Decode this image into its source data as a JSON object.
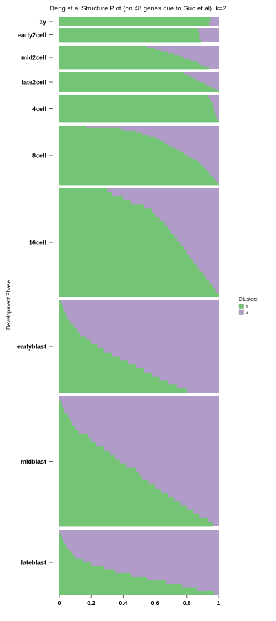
{
  "chart_data": {
    "type": "bar",
    "orientation": "horizontal",
    "stacked": true,
    "title": "Deng et al Structure Plot (on 48 genes due to Guo et al), k=2",
    "ylabel": "Development Phase",
    "xlabel": "",
    "xlim": [
      0,
      1
    ],
    "x_ticks": [
      "0",
      "0.2",
      "0.4",
      "0.6",
      "0.8",
      "1"
    ],
    "grid": false,
    "legend": {
      "title": "Clusters",
      "placement": "right",
      "entries": [
        "1",
        "2"
      ]
    },
    "colors": {
      "cluster_1": "#74c476",
      "cluster_2": "#b19cc9"
    },
    "groups": [
      {
        "name": "zy",
        "cluster_1": [
          0.95,
          0.95,
          0.94,
          0.94
        ]
      },
      {
        "name": "early2cell",
        "cluster_1": [
          0.87,
          0.87,
          0.88,
          0.88,
          0.88,
          0.88,
          0.89,
          0.89
        ]
      },
      {
        "name": "mid2cell",
        "cluster_1": [
          0.55,
          0.6,
          0.64,
          0.68,
          0.72,
          0.76,
          0.78,
          0.82,
          0.86,
          0.88,
          0.91,
          0.94
        ]
      },
      {
        "name": "late2cell",
        "cluster_1": [
          0.78,
          0.8,
          0.82,
          0.84,
          0.86,
          0.88,
          0.9,
          0.92,
          0.94,
          0.96,
          0.98,
          1.0
        ]
      },
      {
        "name": "4cell",
        "cluster_1": [
          0.93,
          0.94,
          0.95,
          0.95,
          0.96,
          0.96,
          0.96,
          0.97,
          0.97,
          0.97,
          0.98,
          0.98,
          0.98,
          0.99,
          0.99,
          1.0
        ]
      },
      {
        "name": "8cell",
        "cluster_1": [
          0.17,
          0.38,
          0.4,
          0.48,
          0.52,
          0.56,
          0.6,
          0.62,
          0.64,
          0.66,
          0.68,
          0.7,
          0.72,
          0.74,
          0.76,
          0.78,
          0.8,
          0.82,
          0.84,
          0.86,
          0.88,
          0.89,
          0.9,
          0.91,
          0.92,
          0.93,
          0.94,
          0.95,
          0.96,
          0.97,
          0.98,
          0.99,
          1.0
        ]
      },
      {
        "name": "16cell",
        "cluster_1": [
          0.3,
          0.33,
          0.4,
          0.45,
          0.53,
          0.58,
          0.6,
          0.63,
          0.66,
          0.68,
          0.7,
          0.72,
          0.74,
          0.76,
          0.78,
          0.8,
          0.82,
          0.84,
          0.86,
          0.88,
          0.9,
          0.92,
          0.94,
          0.96,
          0.98,
          1.0
        ]
      },
      {
        "name": "earlyblast",
        "cluster_1": [
          0.01,
          0.02,
          0.03,
          0.04,
          0.05,
          0.07,
          0.09,
          0.11,
          0.13,
          0.17,
          0.2,
          0.24,
          0.28,
          0.33,
          0.38,
          0.43,
          0.48,
          0.53,
          0.58,
          0.63,
          0.68,
          0.74,
          0.8
        ]
      },
      {
        "name": "midblast",
        "cluster_1": [
          0.0,
          0.01,
          0.02,
          0.03,
          0.05,
          0.07,
          0.08,
          0.1,
          0.12,
          0.18,
          0.2,
          0.23,
          0.28,
          0.32,
          0.35,
          0.38,
          0.42,
          0.48,
          0.5,
          0.52,
          0.56,
          0.6,
          0.64,
          0.68,
          0.72,
          0.76,
          0.8,
          0.84,
          0.88,
          0.93,
          0.96
        ]
      },
      {
        "name": "lateblast",
        "cluster_1": [
          0.0,
          0.01,
          0.02,
          0.03,
          0.04,
          0.06,
          0.08,
          0.1,
          0.15,
          0.2,
          0.28,
          0.35,
          0.45,
          0.55,
          0.67,
          0.77,
          0.86,
          0.97
        ]
      }
    ]
  }
}
